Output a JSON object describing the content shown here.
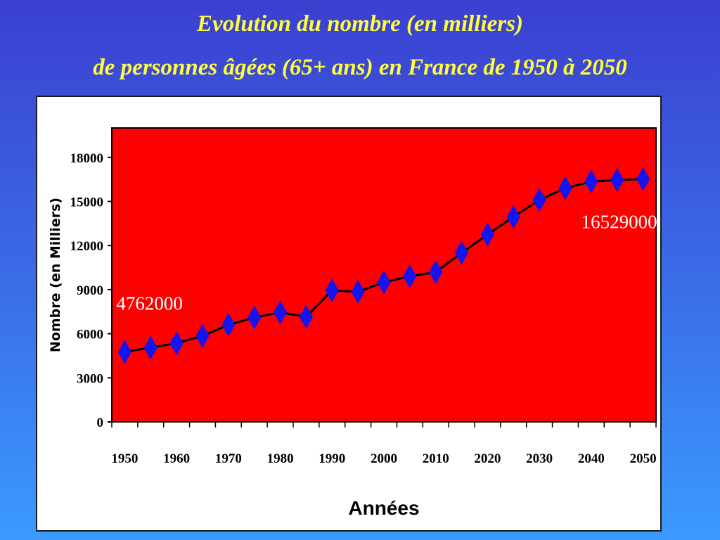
{
  "page": {
    "title_line1": "Evolution du nombre (en milliers)",
    "title_line2": "de personnes âgées (65+ ans) en France de 1950 à 2050"
  },
  "colors": {
    "plot_bg": "#ff0000",
    "marker": "#1414f0",
    "line": "#000000",
    "annotation": "#ffffff",
    "title": "#ffff3a"
  },
  "chart_data": {
    "type": "line",
    "xlabel": "Années",
    "ylabel": "Nombre (en Milliers)",
    "ylim": [
      0,
      20000
    ],
    "yticks": [
      0,
      3000,
      6000,
      9000,
      12000,
      15000,
      18000
    ],
    "xticks": [
      1950,
      1960,
      1970,
      1980,
      1990,
      2000,
      2010,
      2020,
      2030,
      2040,
      2050
    ],
    "xlim": [
      1947.5,
      2052.5
    ],
    "grid": false,
    "legend": "none",
    "marker": "diamond",
    "series": [
      {
        "x": [
          1950,
          1955,
          1960,
          1965,
          1970,
          1975,
          1980,
          1985,
          1990,
          1995,
          2000,
          2005,
          2010,
          2015,
          2020,
          2025,
          2030,
          2035,
          2040,
          2045,
          2050
        ],
        "values": [
          4762,
          5050,
          5350,
          5850,
          6600,
          7100,
          7450,
          7150,
          8950,
          8850,
          9500,
          9900,
          10200,
          11500,
          12750,
          13950,
          15100,
          15900,
          16350,
          16450,
          16529
        ]
      }
    ],
    "annotations": [
      {
        "text": "4762000",
        "x": 1950,
        "y": 4762
      },
      {
        "text": "16529000",
        "x": 2050,
        "y": 16529
      }
    ]
  }
}
